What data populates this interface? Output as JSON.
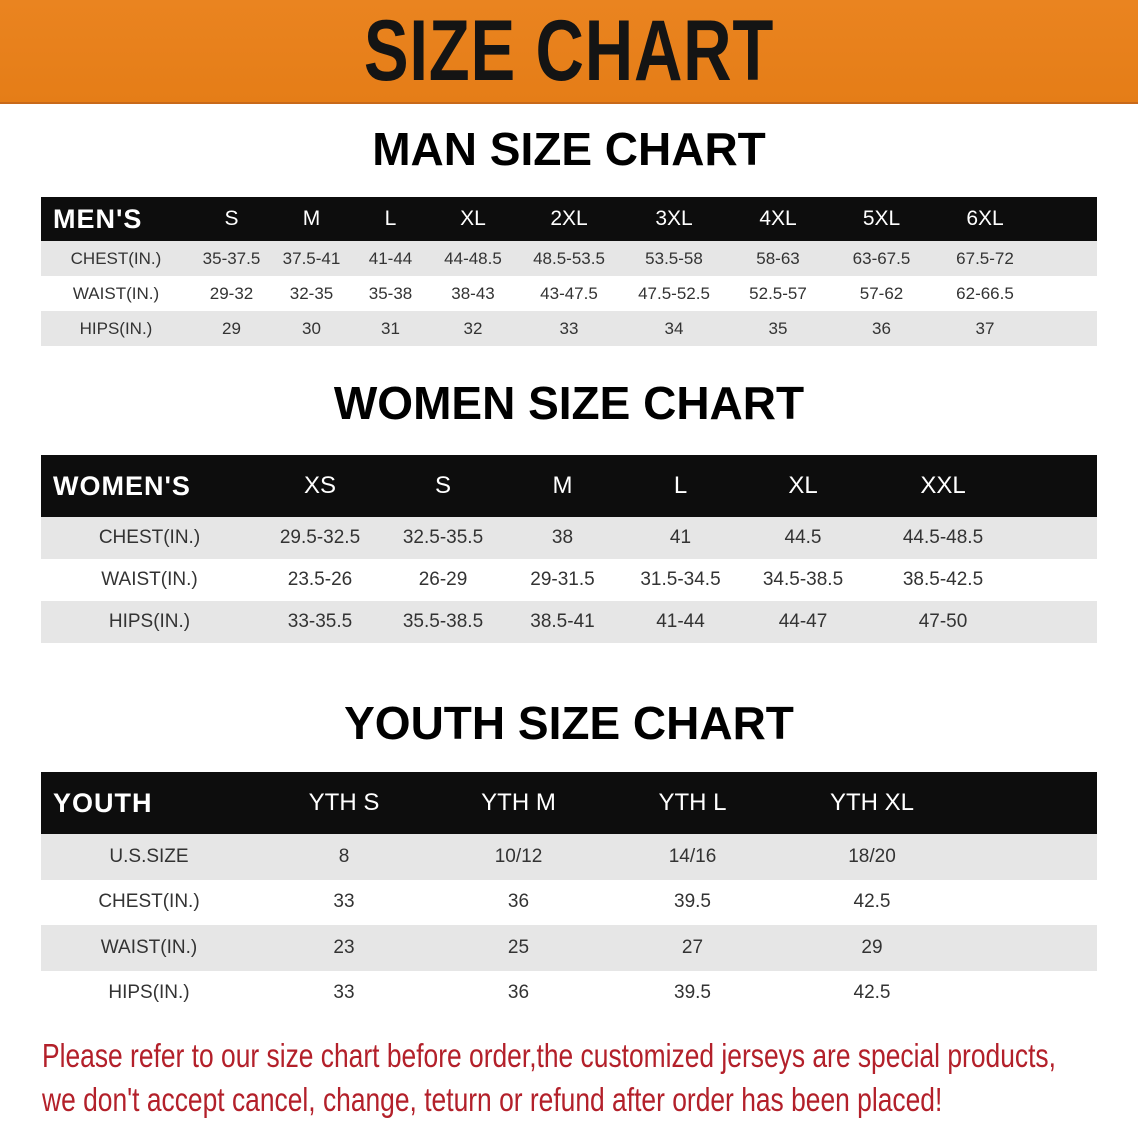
{
  "banner": {
    "title": "SIZE CHART",
    "color": "#e8801e"
  },
  "men": {
    "title": "MAN SIZE CHART",
    "header": [
      "MEN'S",
      "S",
      "M",
      "L",
      "XL",
      "2XL",
      "3XL",
      "4XL",
      "5XL",
      "6XL"
    ],
    "rows": [
      [
        "CHEST(IN.)",
        "35-37.5",
        "37.5-41",
        "41-44",
        "44-48.5",
        "48.5-53.5",
        "53.5-58",
        "58-63",
        "63-67.5",
        "67.5-72"
      ],
      [
        "WAIST(IN.)",
        "29-32",
        "32-35",
        "35-38",
        "38-43",
        "43-47.5",
        "47.5-52.5",
        "52.5-57",
        "57-62",
        "62-66.5"
      ],
      [
        "HIPS(IN.)",
        "29",
        "30",
        "31",
        "32",
        "33",
        "34",
        "35",
        "36",
        "37"
      ]
    ]
  },
  "women": {
    "title": "WOMEN SIZE CHART",
    "header": [
      "WOMEN'S",
      "XS",
      "S",
      "M",
      "L",
      "XL",
      "XXL"
    ],
    "rows": [
      [
        "CHEST(IN.)",
        "29.5-32.5",
        "32.5-35.5",
        "38",
        "41",
        "44.5",
        "44.5-48.5"
      ],
      [
        "WAIST(IN.)",
        "23.5-26",
        "26-29",
        "29-31.5",
        "31.5-34.5",
        "34.5-38.5",
        "38.5-42.5"
      ],
      [
        "HIPS(IN.)",
        "33-35.5",
        "35.5-38.5",
        "38.5-41",
        "41-44",
        "44-47",
        "47-50"
      ]
    ]
  },
  "youth": {
    "title": "YOUTH SIZE CHART",
    "header": [
      "YOUTH",
      "YTH S",
      "YTH M",
      "YTH L",
      "YTH XL"
    ],
    "rows": [
      [
        "U.S.SIZE",
        "8",
        "10/12",
        "14/16",
        "18/20"
      ],
      [
        "CHEST(IN.)",
        "33",
        "36",
        "39.5",
        "42.5"
      ],
      [
        "WAIST(IN.)",
        "23",
        "25",
        "27",
        "29"
      ],
      [
        "HIPS(IN.)",
        "33",
        "36",
        "39.5",
        "42.5"
      ]
    ]
  },
  "note": {
    "line1": "Please refer to our size chart before order,the customized jerseys are special products,",
    "line2": "we don't accept cancel, change, teturn or refund after order has been placed!",
    "color": "#b3202a"
  }
}
